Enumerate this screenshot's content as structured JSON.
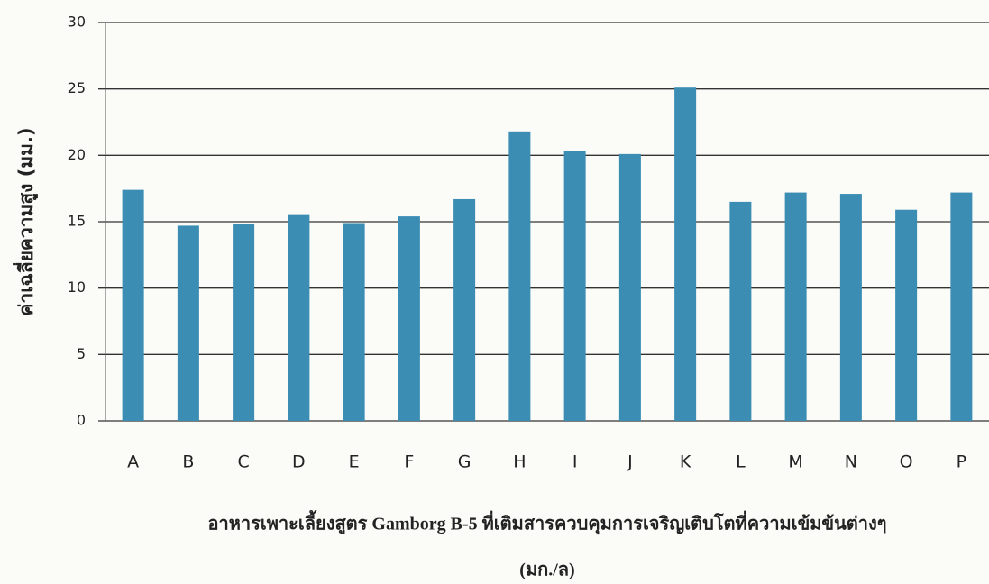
{
  "chart_data": {
    "type": "bar",
    "ylabel": "ค่าเฉลี่ยความสูง (มม.)",
    "xlabel": [
      "อาหารเพาะเลี้ยงสูตร Gamborg B-5 ที่เติมสารควบคุมการเจริญเติบโตที่ความเข้มข้นต่างๆ",
      "(มก./ล)"
    ],
    "categories": [
      "A",
      "B",
      "C",
      "D",
      "E",
      "F",
      "G",
      "H",
      "I",
      "J",
      "K",
      "L",
      "M",
      "N",
      "O",
      "P"
    ],
    "values": [
      17.4,
      14.7,
      14.8,
      15.5,
      14.9,
      15.4,
      16.7,
      21.8,
      20.3,
      20.1,
      25.1,
      16.5,
      17.2,
      17.1,
      15.9,
      17.2
    ],
    "color": "#3b8db4",
    "ylim": [
      0,
      30
    ],
    "yticks": [
      0,
      5,
      10,
      15,
      20,
      25,
      30
    ],
    "grid": true
  }
}
